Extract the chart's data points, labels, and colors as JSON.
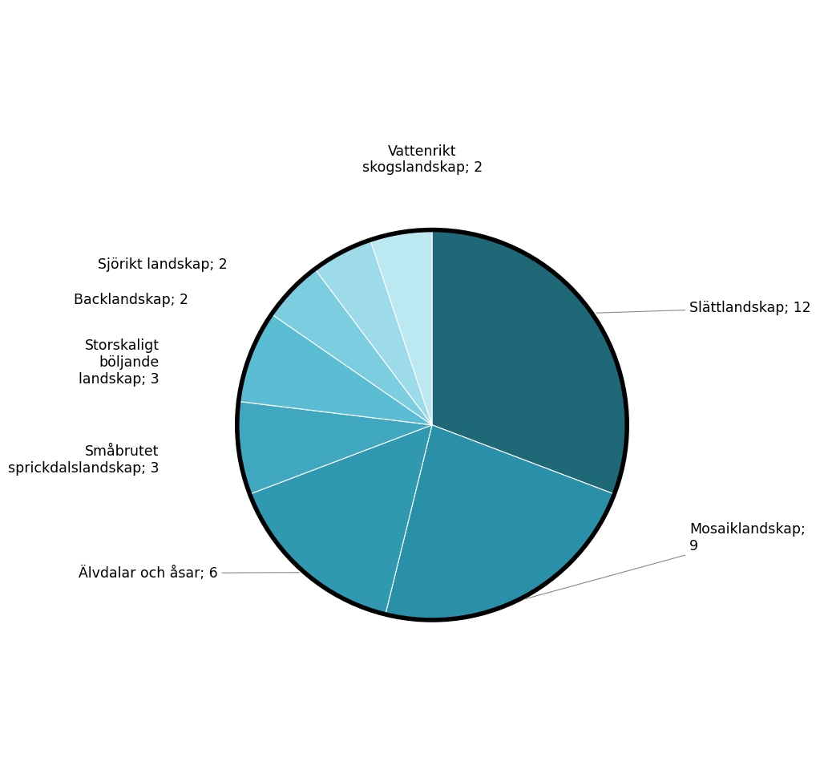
{
  "labels": [
    "Slättlandskap",
    "Mosaiklandskap",
    "Älvdalar och åsar",
    "Småbrutet sprickdalslandskap",
    "Storskaligt böljande landskap",
    "Backlandskap",
    "Sjörikt landskap",
    "Vattenrikt skogslandskap"
  ],
  "values": [
    12,
    9,
    6,
    3,
    3,
    2,
    2,
    2
  ],
  "colors": [
    "#1e6878",
    "#2a8fa8",
    "#3098b0",
    "#3fa8c0",
    "#5bbdd4",
    "#7dcde0",
    "#9ddaea",
    "#bce8f2"
  ],
  "label_display": [
    "Slättlandskap; 12",
    "Mosaiklandskap;\n9",
    "Älvdalar och åsar; 6",
    "Småbrutet\nsprickdalslandskap; 3",
    "Storskaligt\nböljande\nlandskap; 3",
    "Backlandskap; 2",
    "Sjörikt landskap; 2",
    "Vattenrikt\nskogslandskap; 2"
  ],
  "startangle": 90,
  "background_color": "#ffffff",
  "text_color": "#000000",
  "fontsize": 12.5
}
